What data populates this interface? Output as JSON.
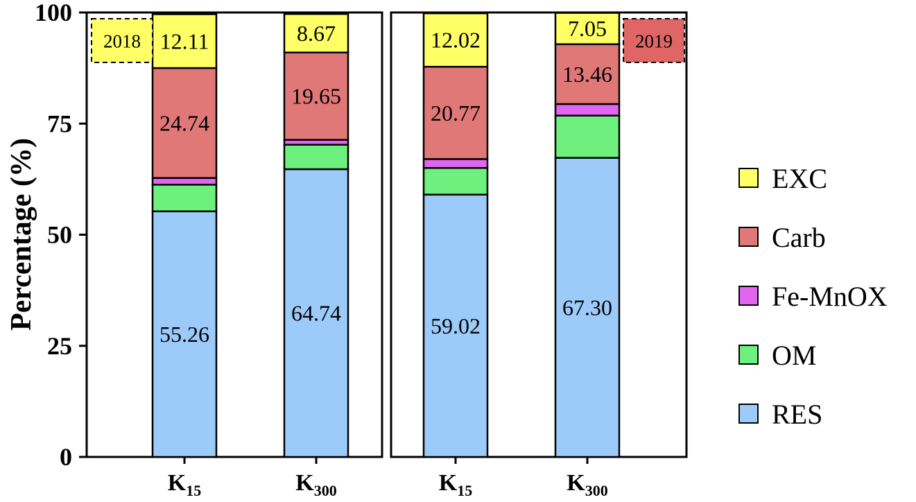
{
  "chart_data": {
    "type": "bar",
    "stacked": true,
    "ylabel": "Percentage (%)",
    "ylim": [
      0,
      100
    ],
    "yticks": [
      "0",
      "25",
      "50",
      "75",
      "100"
    ],
    "legend_position": "right",
    "components": [
      {
        "name": "EXC",
        "color": "#FFFF66"
      },
      {
        "name": "Carb",
        "color": "#E07878"
      },
      {
        "name": "Fe-MnOX",
        "color": "#E066F0"
      },
      {
        "name": "OM",
        "color": "#6EF07E"
      },
      {
        "name": "RES",
        "color": "#9CCBFA"
      }
    ],
    "panels": [
      {
        "year": "2018",
        "year_color": "#FFFF66",
        "year_position": "top-left",
        "bars": [
          {
            "category": "K",
            "subscript": "15",
            "values": {
              "RES": 55.26,
              "OM": 6.0,
              "Fe-MnOX": 1.5,
              "Carb": 24.74,
              "EXC": 12.11
            },
            "labels": {
              "RES": "55.26",
              "Carb": "24.74",
              "EXC": "12.11"
            }
          },
          {
            "category": "K",
            "subscript": "300",
            "values": {
              "RES": 64.74,
              "OM": 5.5,
              "Fe-MnOX": 1.1,
              "Carb": 19.65,
              "EXC": 8.67
            },
            "labels": {
              "RES": "64.74",
              "Carb": "19.65",
              "EXC": "8.67"
            }
          }
        ]
      },
      {
        "year": "2019",
        "year_color": "#E06666",
        "year_position": "top-right",
        "bars": [
          {
            "category": "K",
            "subscript": "15",
            "values": {
              "RES": 59.02,
              "OM": 6.0,
              "Fe-MnOX": 2.0,
              "Carb": 20.77,
              "EXC": 12.02
            },
            "labels": {
              "RES": "59.02",
              "Carb": "20.77",
              "EXC": "12.02"
            }
          },
          {
            "category": "K",
            "subscript": "300",
            "values": {
              "RES": 67.3,
              "OM": 9.5,
              "Fe-MnOX": 2.6,
              "Carb": 13.46,
              "EXC": 7.05
            },
            "labels": {
              "RES": "67.30",
              "Carb": "13.46",
              "EXC": "7.05"
            }
          }
        ]
      }
    ]
  }
}
